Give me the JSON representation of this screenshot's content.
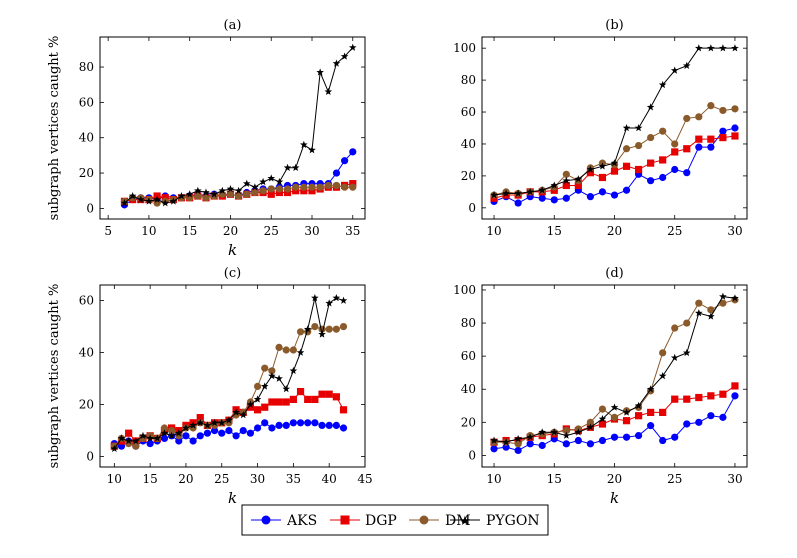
{
  "colors": {
    "AKS": "#0000ff",
    "DGP": "#e60000",
    "DM": "#8b5a2b",
    "PYGON": "#000000"
  },
  "markers": {
    "AKS": "circle",
    "DGP": "square",
    "DM": "circle",
    "PYGON": "star"
  },
  "legend": {
    "placement": "bottom-center",
    "entries": [
      "AKS",
      "DGP",
      "DM",
      "PYGON"
    ]
  },
  "chart_data": [
    {
      "type": "line",
      "title": "(a)",
      "xlabel": "k",
      "ylabel": "subgraph vertices caught %",
      "xlim": [
        4,
        36.5
      ],
      "ylim": [
        -6,
        97
      ],
      "xticks": [
        5,
        10,
        15,
        20,
        25,
        30,
        35
      ],
      "yticks": [
        0,
        20,
        40,
        60,
        80
      ],
      "grid": false,
      "x": [
        7,
        8,
        9,
        10,
        11,
        12,
        13,
        14,
        15,
        16,
        17,
        18,
        19,
        20,
        21,
        22,
        23,
        24,
        25,
        26,
        27,
        28,
        29,
        30,
        31,
        32,
        33,
        34,
        35
      ],
      "series": [
        {
          "name": "AKS",
          "values": [
            2,
            5,
            6,
            6,
            5,
            7,
            6,
            6,
            7,
            8,
            7,
            8,
            7,
            8,
            7,
            9,
            10,
            11,
            11,
            12,
            13,
            13,
            14,
            14,
            14,
            14,
            20,
            27,
            32
          ]
        },
        {
          "name": "DGP",
          "values": [
            4,
            5,
            5,
            5,
            7,
            6,
            5,
            6,
            6,
            7,
            6,
            7,
            7,
            8,
            7,
            8,
            9,
            9,
            8,
            9,
            9,
            10,
            10,
            10,
            11,
            12,
            12,
            13,
            14
          ]
        },
        {
          "name": "DM",
          "values": [
            4,
            6,
            6,
            5,
            3,
            4,
            5,
            6,
            6,
            7,
            6,
            7,
            8,
            8,
            7,
            8,
            9,
            10,
            11,
            11,
            11,
            12,
            12,
            12,
            12,
            13,
            13,
            12,
            12
          ]
        },
        {
          "name": "PYGON",
          "values": [
            3,
            7,
            5,
            4,
            5,
            3,
            4,
            7,
            8,
            10,
            9,
            8,
            10,
            11,
            10,
            14,
            12,
            15,
            17,
            15,
            23,
            23,
            36,
            33,
            77,
            66,
            82,
            86,
            91
          ]
        }
      ]
    },
    {
      "type": "line",
      "title": "(b)",
      "xlabel": "",
      "ylabel": "",
      "xlim": [
        9,
        31
      ],
      "ylim": [
        -7,
        107
      ],
      "xticks": [
        10,
        15,
        20,
        25,
        30
      ],
      "yticks": [
        0,
        20,
        40,
        60,
        80,
        100
      ],
      "grid": false,
      "x": [
        10,
        11,
        12,
        13,
        14,
        15,
        16,
        17,
        18,
        19,
        20,
        21,
        22,
        23,
        24,
        25,
        26,
        27,
        28,
        29,
        30
      ],
      "series": [
        {
          "name": "AKS",
          "values": [
            4,
            7,
            3,
            7,
            6,
            5,
            6,
            11,
            7,
            10,
            8,
            11,
            21,
            17,
            19,
            24,
            22,
            38,
            38,
            48,
            50
          ]
        },
        {
          "name": "DGP",
          "values": [
            6,
            8,
            8,
            10,
            10,
            11,
            14,
            14,
            22,
            19,
            23,
            26,
            24,
            28,
            30,
            35,
            37,
            43,
            43,
            44,
            45
          ]
        },
        {
          "name": "DM",
          "values": [
            8,
            10,
            9,
            10,
            11,
            13,
            21,
            17,
            25,
            28,
            27,
            37,
            39,
            44,
            48,
            40,
            56,
            57,
            64,
            61,
            62
          ]
        },
        {
          "name": "PYGON",
          "values": [
            8,
            9,
            9,
            10,
            11,
            14,
            17,
            18,
            24,
            26,
            28,
            50,
            50,
            63,
            77,
            86,
            89,
            100,
            100,
            100,
            100
          ]
        }
      ]
    },
    {
      "type": "line",
      "title": "(c)",
      "xlabel": "k",
      "ylabel": "subgraph vertices caught %",
      "xlim": [
        8,
        45
      ],
      "ylim": [
        -4,
        66
      ],
      "xticks": [
        10,
        15,
        20,
        25,
        30,
        35,
        40,
        45
      ],
      "yticks": [
        0,
        20,
        40,
        60
      ],
      "grid": false,
      "x": [
        10,
        11,
        12,
        13,
        14,
        15,
        16,
        17,
        18,
        19,
        20,
        21,
        22,
        23,
        24,
        25,
        26,
        27,
        28,
        29,
        30,
        31,
        32,
        33,
        34,
        35,
        36,
        37,
        38,
        39,
        40,
        41,
        42
      ],
      "series": [
        {
          "name": "AKS",
          "values": [
            5,
            4,
            6,
            4,
            6,
            5,
            6,
            7,
            8,
            6,
            8,
            6,
            8,
            9,
            10,
            9,
            10,
            8,
            10,
            9,
            11,
            13,
            11,
            12,
            12,
            13,
            13,
            13,
            13,
            12,
            12,
            12,
            11
          ]
        },
        {
          "name": "DGP",
          "values": [
            4,
            6,
            9,
            6,
            7,
            8,
            7,
            10,
            11,
            10,
            12,
            13,
            15,
            12,
            13,
            13,
            14,
            18,
            17,
            19,
            18,
            19,
            21,
            21,
            21,
            22,
            25,
            22,
            22,
            24,
            24,
            23,
            18
          ]
        },
        {
          "name": "DM",
          "values": [
            4,
            7,
            5,
            4,
            7,
            8,
            7,
            11,
            10,
            8,
            11,
            11,
            13,
            12,
            12,
            13,
            13,
            16,
            17,
            21,
            27,
            34,
            33,
            42,
            41,
            41,
            48,
            48,
            50,
            49,
            49,
            49,
            50
          ]
        },
        {
          "name": "PYGON",
          "values": [
            3,
            7,
            6,
            6,
            8,
            7,
            7,
            9,
            8,
            9,
            11,
            12,
            13,
            12,
            13,
            13,
            14,
            17,
            16,
            20,
            22,
            27,
            31,
            30,
            26,
            33,
            40,
            49,
            61,
            47,
            59,
            61,
            60
          ]
        }
      ]
    },
    {
      "type": "line",
      "title": "(d)",
      "xlabel": "k",
      "ylabel": "",
      "xlim": [
        9,
        31
      ],
      "ylim": [
        -7,
        103
      ],
      "xticks": [
        10,
        15,
        20,
        25,
        30
      ],
      "yticks": [
        0,
        20,
        40,
        60,
        80,
        100
      ],
      "grid": false,
      "x": [
        10,
        11,
        12,
        13,
        14,
        15,
        16,
        17,
        18,
        19,
        20,
        21,
        22,
        23,
        24,
        25,
        26,
        27,
        28,
        29,
        30
      ],
      "series": [
        {
          "name": "AKS",
          "values": [
            4,
            5,
            3,
            7,
            6,
            10,
            7,
            9,
            7,
            9,
            11,
            11,
            12,
            18,
            9,
            11,
            19,
            20,
            24,
            23,
            36
          ]
        },
        {
          "name": "DGP",
          "values": [
            8,
            9,
            9,
            11,
            12,
            13,
            16,
            15,
            17,
            19,
            22,
            21,
            24,
            26,
            26,
            34,
            34,
            35,
            36,
            37,
            42
          ]
        },
        {
          "name": "DM",
          "values": [
            8,
            8,
            7,
            12,
            13,
            14,
            15,
            16,
            20,
            28,
            23,
            27,
            29,
            39,
            62,
            77,
            80,
            92,
            88,
            92,
            94
          ]
        },
        {
          "name": "PYGON",
          "values": [
            9,
            8,
            10,
            11,
            14,
            14,
            12,
            14,
            17,
            22,
            29,
            26,
            30,
            40,
            48,
            59,
            62,
            86,
            84,
            96,
            95
          ]
        }
      ]
    }
  ]
}
